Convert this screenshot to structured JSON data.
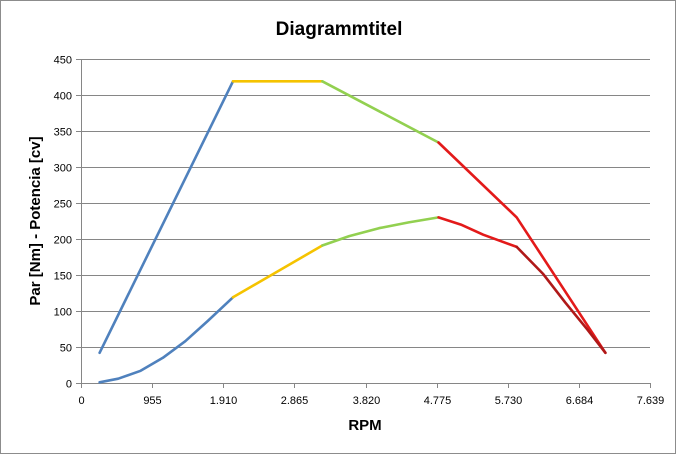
{
  "chart_data": {
    "type": "line",
    "title": "Diagrammtitel",
    "xlabel": "RPM",
    "ylabel": "Par [Nm] - Potencia [cv]",
    "xlim": [
      0,
      7639
    ],
    "ylim": [
      0,
      450
    ],
    "x_ticks": [
      "0",
      "955",
      "1.910",
      "2.865",
      "3.820",
      "4.775",
      "5.730",
      "6.684",
      "7.639"
    ],
    "x_tick_values": [
      0,
      955,
      1910,
      2865,
      3820,
      4775,
      5730,
      6684,
      7639
    ],
    "y_ticks": [
      "0",
      "50",
      "100",
      "150",
      "200",
      "250",
      "300",
      "350",
      "400",
      "450"
    ],
    "y_tick_values": [
      0,
      50,
      100,
      150,
      200,
      250,
      300,
      350,
      400,
      450
    ],
    "grid": true,
    "legend": "none",
    "series": [
      {
        "segments": [
          {
            "color": "#4f81bd",
            "points": [
              [
                250,
                42
              ],
              [
                2040,
                419
              ]
            ]
          },
          {
            "color": "#f5c300",
            "points": [
              [
                2040,
                419
              ],
              [
                3240,
                419
              ]
            ]
          },
          {
            "color": "#92d050",
            "points": [
              [
                3240,
                419
              ],
              [
                4800,
                334
              ]
            ]
          },
          {
            "color": "#e31a1a",
            "points": [
              [
                4800,
                334
              ],
              [
                5850,
                230
              ],
              [
                7040,
                42
              ]
            ]
          }
        ]
      },
      {
        "segments": [
          {
            "color": "#4f81bd",
            "points": [
              [
                250,
                1
              ],
              [
                500,
                6
              ],
              [
                800,
                17
              ],
              [
                1100,
                35
              ],
              [
                1400,
                58
              ],
              [
                1700,
                86
              ],
              [
                2040,
                119
              ]
            ]
          },
          {
            "color": "#f5c300",
            "points": [
              [
                2040,
                119
              ],
              [
                3240,
                191
              ]
            ]
          },
          {
            "color": "#92d050",
            "points": [
              [
                3240,
                191
              ],
              [
                3600,
                204
              ],
              [
                4000,
                215
              ],
              [
                4400,
                223
              ],
              [
                4800,
                230
              ]
            ]
          },
          {
            "color": "#e31a1a",
            "points": [
              [
                4800,
                230
              ],
              [
                5100,
                220
              ],
              [
                5400,
                206
              ],
              [
                5850,
                189
              ]
            ]
          },
          {
            "color": "#b01818",
            "points": [
              [
                5850,
                189
              ],
              [
                6200,
                152
              ],
              [
                6500,
                112
              ],
              [
                6800,
                74
              ],
              [
                7040,
                42
              ]
            ]
          }
        ]
      }
    ]
  }
}
